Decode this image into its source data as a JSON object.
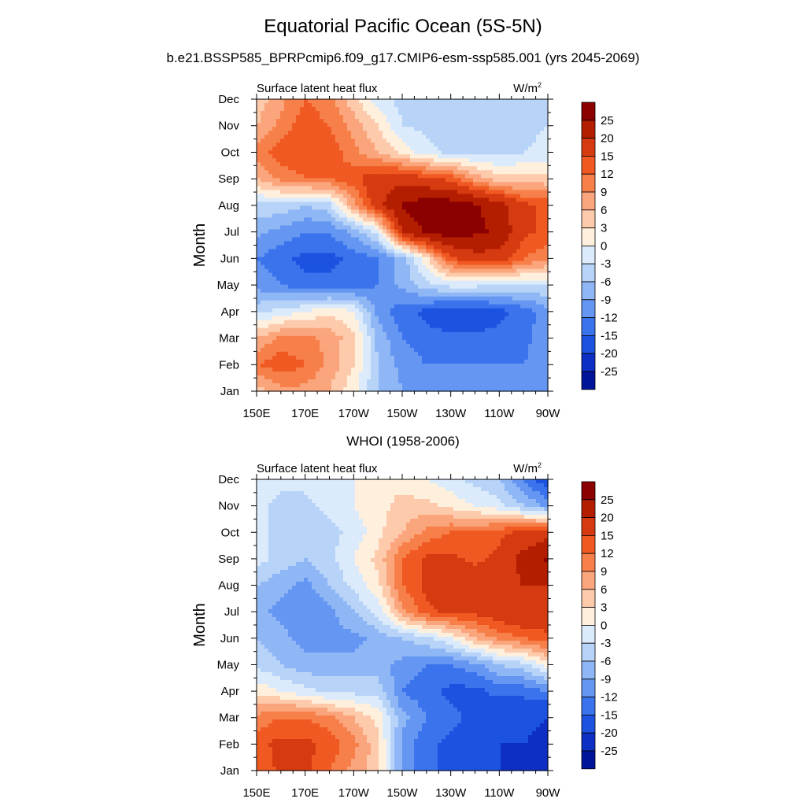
{
  "figure": {
    "title": "Equatorial Pacific Ocean (5S-5N)",
    "subtitle": "b.e21.BSSP585_BPRPcmip6.f09_g17.CMIP6-esm-ssp585.001 (yrs 2045-2069)"
  },
  "colorbar": {
    "levels": [
      "25",
      "20",
      "15",
      "12",
      "9",
      "6",
      "3",
      "0",
      "-3",
      "-6",
      "-9",
      "-12",
      "-15",
      "-20",
      "-25"
    ],
    "colors": [
      "#8b0000",
      "#b31e00",
      "#d63a10",
      "#f05a22",
      "#f7804a",
      "#fba57d",
      "#fdcaab",
      "#fff0dd",
      "#dcebfb",
      "#b8d3f8",
      "#8fb6f5",
      "#6496f2",
      "#3a73ec",
      "#1b52e0",
      "#0d2fc4",
      "#00149a"
    ]
  },
  "chart_data": [
    {
      "type": "heatmap",
      "panel_title": "",
      "left_label": "Surface latent heat flux",
      "units": "W/m",
      "units_sup": "2",
      "ylabel": "Month",
      "xlabel": "",
      "x_ticks": [
        "150E",
        "170E",
        "170W",
        "150W",
        "130W",
        "110W",
        "90W"
      ],
      "y_ticks": [
        "Jan",
        "Feb",
        "Mar",
        "Apr",
        "May",
        "Jun",
        "Jul",
        "Aug",
        "Sep",
        "Oct",
        "Nov",
        "Dec"
      ],
      "x_range": [
        "150E",
        "90W"
      ],
      "y_range": [
        "Jan",
        "Dec"
      ],
      "lon_columns": [
        "150E",
        "160E",
        "170E",
        "180",
        "170W",
        "160W",
        "150W",
        "140W",
        "130W",
        "120W",
        "110W",
        "100W",
        "90W"
      ],
      "z": [
        [
          4,
          8,
          8,
          6,
          1,
          -6,
          -9,
          -10,
          -10,
          -10,
          -10,
          -10,
          -9
        ],
        [
          12,
          14,
          12,
          8,
          3,
          -6,
          -10,
          -12,
          -12,
          -12,
          -12,
          -12,
          -10
        ],
        [
          6,
          10,
          10,
          8,
          4,
          -7,
          -12,
          -14,
          -14,
          -14,
          -14,
          -13,
          -10
        ],
        [
          -4,
          -2,
          0,
          2,
          0,
          -10,
          -14,
          -16,
          -18,
          -18,
          -16,
          -14,
          -10
        ],
        [
          -10,
          -12,
          -14,
          -14,
          -14,
          -12,
          -8,
          -4,
          -2,
          -2,
          -3,
          -3,
          -3
        ],
        [
          -12,
          -14,
          -16,
          -16,
          -14,
          -12,
          -8,
          2,
          14,
          18,
          18,
          12,
          10
        ],
        [
          -8,
          -10,
          -12,
          -12,
          -8,
          -2,
          20,
          26,
          28,
          26,
          24,
          16,
          14
        ],
        [
          -4,
          -4,
          -6,
          -4,
          8,
          18,
          26,
          28,
          28,
          26,
          22,
          16,
          14
        ],
        [
          6,
          10,
          12,
          12,
          14,
          18,
          18,
          16,
          14,
          8,
          4,
          4,
          4
        ],
        [
          10,
          14,
          14,
          14,
          10,
          6,
          2,
          -2,
          -4,
          -4,
          -4,
          -3,
          -2
        ],
        [
          6,
          10,
          14,
          12,
          8,
          3,
          -3,
          -4,
          -5,
          -5,
          -5,
          -4,
          -3
        ],
        [
          4,
          8,
          12,
          10,
          4,
          -2,
          -4,
          -5,
          -5,
          -4,
          -4,
          -4,
          -3
        ]
      ]
    },
    {
      "type": "heatmap",
      "panel_title": "WHOI (1958-2006)",
      "left_label": "Surface latent heat flux",
      "units": "W/m",
      "units_sup": "2",
      "ylabel": "Month",
      "xlabel": "",
      "x_ticks": [
        "150E",
        "170E",
        "170W",
        "150W",
        "130W",
        "110W",
        "90W"
      ],
      "y_ticks": [
        "Jan",
        "Feb",
        "Mar",
        "Apr",
        "May",
        "Jun",
        "Jul",
        "Aug",
        "Sep",
        "Oct",
        "Nov",
        "Dec"
      ],
      "x_range": [
        "150E",
        "90W"
      ],
      "y_range": [
        "Jan",
        "Dec"
      ],
      "lon_columns": [
        "150E",
        "160E",
        "170E",
        "180",
        "170W",
        "160W",
        "150W",
        "140W",
        "130W",
        "120W",
        "110W",
        "100W",
        "90W"
      ],
      "z": [
        [
          12,
          16,
          16,
          12,
          8,
          4,
          -10,
          -14,
          -16,
          -18,
          -20,
          -22,
          -25
        ],
        [
          14,
          16,
          16,
          14,
          10,
          4,
          -10,
          -14,
          -16,
          -18,
          -20,
          -20,
          -22
        ],
        [
          10,
          12,
          12,
          10,
          6,
          2,
          -8,
          -12,
          -14,
          -16,
          -18,
          -18,
          -20
        ],
        [
          2,
          0,
          -2,
          -4,
          -4,
          -4,
          -12,
          -14,
          -16,
          -16,
          -14,
          -14,
          -12
        ],
        [
          -4,
          -6,
          -8,
          -8,
          -8,
          -8,
          -10,
          -12,
          -12,
          -10,
          -6,
          -4,
          2
        ],
        [
          -6,
          -8,
          -10,
          -10,
          -10,
          -8,
          -6,
          -4,
          0,
          6,
          10,
          12,
          14
        ],
        [
          -8,
          -10,
          -12,
          -10,
          -6,
          -2,
          8,
          14,
          16,
          16,
          18,
          20,
          18
        ],
        [
          -6,
          -8,
          -10,
          -6,
          -2,
          2,
          12,
          16,
          18,
          18,
          18,
          20,
          20
        ],
        [
          -2,
          -4,
          -6,
          -4,
          0,
          4,
          12,
          16,
          16,
          14,
          16,
          22,
          26
        ],
        [
          -2,
          -4,
          -6,
          -4,
          -2,
          2,
          6,
          10,
          12,
          12,
          14,
          16,
          18
        ],
        [
          -2,
          -4,
          -4,
          -2,
          0,
          2,
          4,
          4,
          2,
          0,
          -2,
          -6,
          -10
        ],
        [
          -2,
          -2,
          -2,
          0,
          0,
          2,
          2,
          0,
          -2,
          -4,
          -6,
          -12,
          -18
        ]
      ]
    }
  ]
}
